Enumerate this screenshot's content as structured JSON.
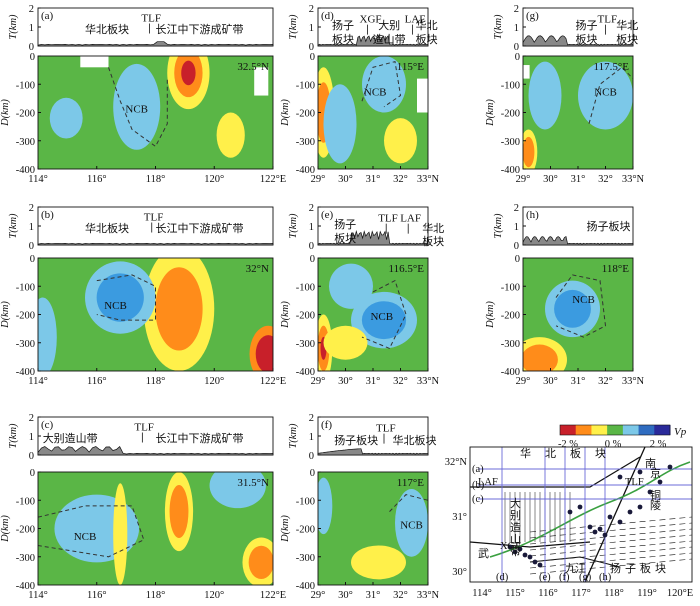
{
  "panels": [
    {
      "id": "a",
      "tag": "(a)",
      "latlon": "32.5°N",
      "cb_label": "NCB",
      "topo_labels": [
        "华北板块",
        "TLF",
        "长江中下游成矿带"
      ],
      "xticks": [
        "114°",
        "116°",
        "118°",
        "120°",
        "122°E"
      ]
    },
    {
      "id": "b",
      "tag": "(b)",
      "latlon": "32°N",
      "cb_label": "NCB",
      "topo_labels": [
        "华北板块",
        "TLF",
        "长江中下游成矿带"
      ],
      "xticks": [
        "114°",
        "116°",
        "118°",
        "120°",
        "122°E"
      ]
    },
    {
      "id": "c",
      "tag": "(c)",
      "latlon": "31.5°N",
      "cb_label": "NCB",
      "topo_labels": [
        "大别造山带",
        "TLF",
        "长江中下游成矿带"
      ],
      "xticks": [
        "114°",
        "116°",
        "118°",
        "120°",
        "122°E"
      ]
    },
    {
      "id": "d",
      "tag": "(d)",
      "latlon": "115°E",
      "cb_label": "NCB",
      "topo_labels": [
        "扬子",
        "板块",
        "XGF",
        "大别",
        "造山带",
        "LAF",
        "华北",
        "板块"
      ],
      "xticks": [
        "29°",
        "30°",
        "31°",
        "32°",
        "33°N"
      ]
    },
    {
      "id": "e",
      "tag": "(e)",
      "latlon": "116.5°E",
      "cb_label": "NCB",
      "topo_labels": [
        "扬子",
        "板块",
        "TLF",
        "LAF",
        "华北",
        "板块"
      ],
      "xticks": [
        "29°",
        "30°",
        "31°",
        "32°",
        "33°N"
      ]
    },
    {
      "id": "f",
      "tag": "(f)",
      "latlon": "117°E",
      "cb_label": "NCB",
      "topo_labels": [
        "扬子板块",
        "TLF",
        "华北板块"
      ],
      "xticks": [
        "29°",
        "30°",
        "31°",
        "32°",
        "33°N"
      ]
    },
    {
      "id": "g",
      "tag": "(g)",
      "latlon": "117.5°E",
      "cb_label": "NCB",
      "topo_labels": [
        "扬子",
        "板块",
        "TLF",
        "华北",
        "板块"
      ],
      "xticks": [
        "29°",
        "30°",
        "31°",
        "32°",
        "33°N"
      ]
    },
    {
      "id": "h",
      "tag": "(h)",
      "latlon": "118°E",
      "cb_label": "NCB",
      "topo_labels": [
        "扬子板块"
      ],
      "xticks": [
        "29°",
        "30°",
        "31°",
        "32°",
        "33°N"
      ]
    }
  ],
  "axes": {
    "topo_ylabel": "T(km)",
    "topo_yticks": [
      "2",
      "1",
      "0"
    ],
    "depth_ylabel": "D(km)",
    "depth_yticks": [
      "0",
      "-100",
      "-200",
      "-300",
      "-400"
    ]
  },
  "colorbar": {
    "title": "Vp",
    "ticks": [
      "-2 %",
      "0 %",
      "2 %"
    ],
    "colors": [
      "#c8202a",
      "#ff8c1a",
      "#fff04a",
      "#5ab646",
      "#7cc8e8",
      "#2f6cc0",
      "#2a2a9a"
    ]
  },
  "map": {
    "lat_ticks": [
      "32°N",
      "31°",
      "30°"
    ],
    "lon_ticks": [
      "114°",
      "115°",
      "116°",
      "117°",
      "118°",
      "119°",
      "120°E"
    ],
    "line_tags": [
      "(a)",
      "(b)",
      "(c)",
      "(d)",
      "(e)",
      "(f)",
      "(g)",
      "(h)"
    ],
    "labels": [
      "华",
      "北",
      "板",
      "块",
      "LAF",
      "大",
      "别",
      "造",
      "山",
      "带",
      "武",
      "XGF",
      "九",
      "江",
      "扬",
      "子",
      "板",
      "块",
      "TLF",
      "南",
      "京",
      "铜",
      "陵"
    ]
  }
}
